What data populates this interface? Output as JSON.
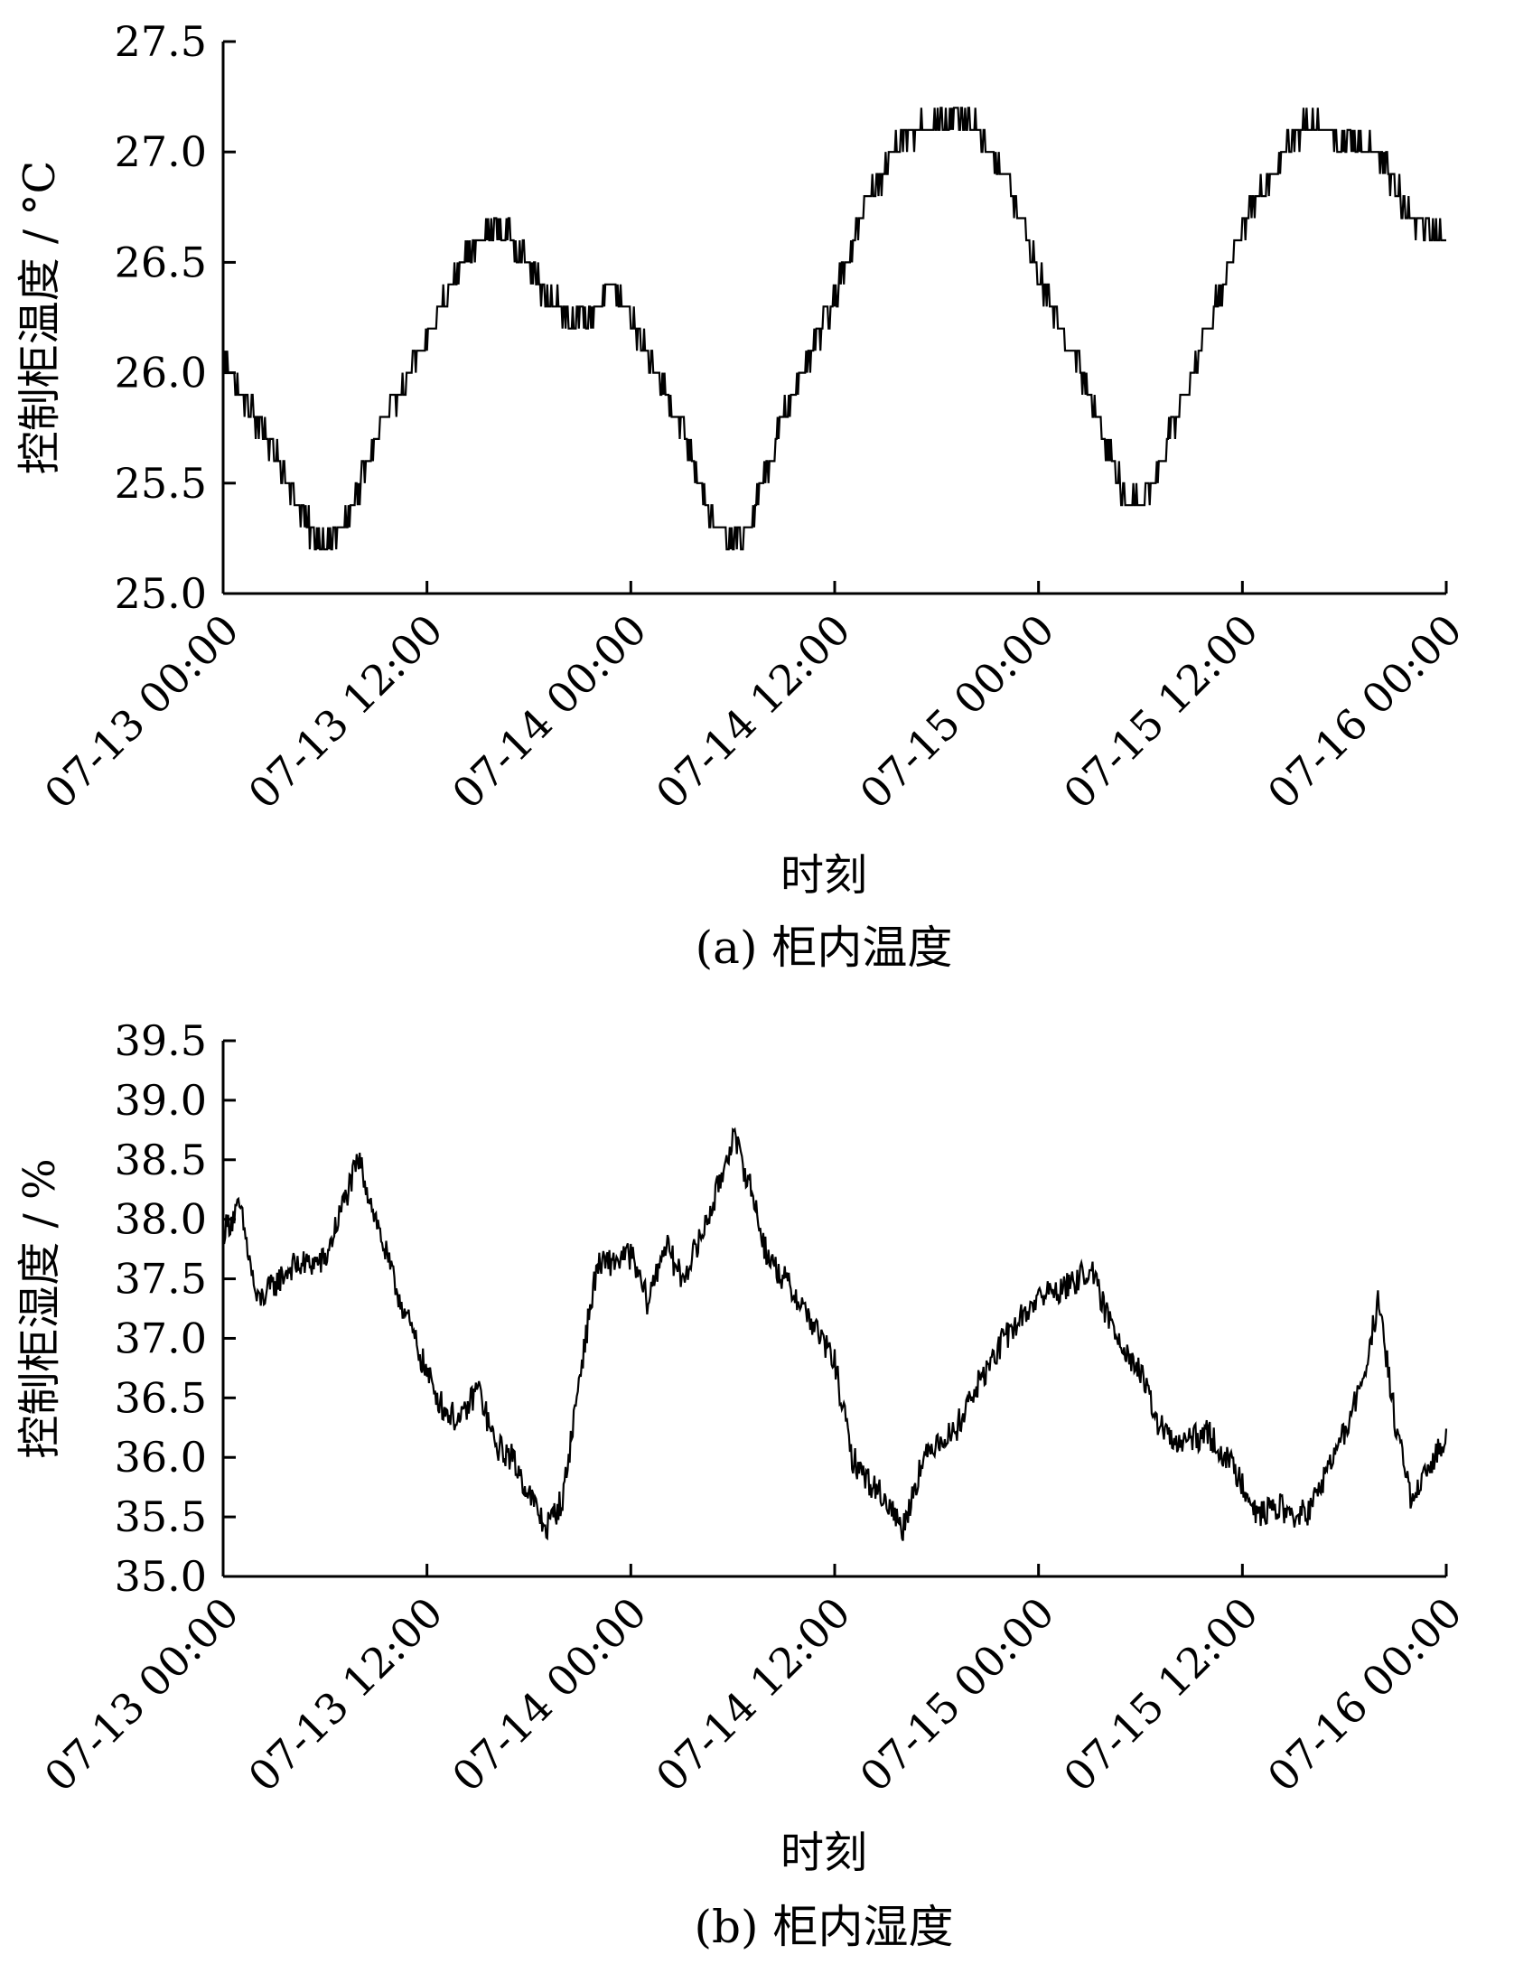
{
  "chart_data": [
    {
      "type": "line",
      "caption": "(a)  柜内温度",
      "xlabel": "时刻",
      "ylabel": "控制柜温度 / °C",
      "x_ticks": [
        "07-13 00:00",
        "07-13 12:00",
        "07-14 00:00",
        "07-14 12:00",
        "07-15 00:00",
        "07-15 12:00",
        "07-16 00:00"
      ],
      "y_ticks": [
        "25.0",
        "25.5",
        "26.0",
        "26.5",
        "27.0",
        "27.5"
      ],
      "xlim": [
        "07-13 00:00",
        "07-16 00:00"
      ],
      "ylim": [
        25.0,
        27.5
      ],
      "grid": false,
      "color": "#000000",
      "series": [
        {
          "x": [
            "07-13 00:00",
            "07-13 03:00",
            "07-13 05:00",
            "07-13 06:00",
            "07-13 07:00",
            "07-13 09:00",
            "07-13 12:00",
            "07-13 14:00",
            "07-13 16:00",
            "07-13 17:00",
            "07-13 19:00",
            "07-13 21:00",
            "07-13 22:00",
            "07-13 23:00",
            "07-14 00:00",
            "07-14 03:00",
            "07-14 05:00",
            "07-14 06:00",
            "07-14 07:00",
            "07-14 09:00",
            "07-14 12:00",
            "07-14 14:00",
            "07-14 16:00",
            "07-14 18:00",
            "07-14 20:00",
            "07-14 22:00",
            "07-15 00:00",
            "07-15 03:00",
            "07-15 05:00",
            "07-15 06:00",
            "07-15 07:00",
            "07-15 09:00",
            "07-15 12:00",
            "07-15 14:00",
            "07-15 16:00",
            "07-15 18:00",
            "07-15 20:00",
            "07-15 22:00",
            "07-16 00:00"
          ],
          "y": [
            26.05,
            25.65,
            25.3,
            25.22,
            25.28,
            25.7,
            26.15,
            26.5,
            26.65,
            26.62,
            26.35,
            26.22,
            26.3,
            26.4,
            26.25,
            25.75,
            25.3,
            25.22,
            25.3,
            25.8,
            26.35,
            26.8,
            27.05,
            27.15,
            27.15,
            26.9,
            26.45,
            25.9,
            25.45,
            25.42,
            25.55,
            26.0,
            26.65,
            26.95,
            27.15,
            27.05,
            27.0,
            26.7,
            26.6
          ]
        }
      ]
    },
    {
      "type": "line",
      "caption": "(b)  柜内湿度",
      "xlabel": "时刻",
      "ylabel": "控制柜湿度 / %",
      "x_ticks": [
        "07-13 00:00",
        "07-13 12:00",
        "07-14 00:00",
        "07-14 12:00",
        "07-15 00:00",
        "07-15 12:00",
        "07-16 00:00"
      ],
      "y_ticks": [
        "35.0",
        "35.5",
        "36.0",
        "36.5",
        "37.0",
        "37.5",
        "38.0",
        "38.5",
        "39.0",
        "39.5"
      ],
      "xlim": [
        "07-13 00:00",
        "07-16 00:00"
      ],
      "ylim": [
        35.0,
        39.5
      ],
      "grid": false,
      "color": "#000000",
      "series": [
        {
          "x": [
            "07-13 00:00",
            "07-13 01:00",
            "07-13 02:00",
            "07-13 04:00",
            "07-13 06:00",
            "07-13 07:00",
            "07-13 08:00",
            "07-13 10:00",
            "07-13 12:00",
            "07-13 13:00",
            "07-13 14:00",
            "07-13 15:00",
            "07-13 16:00",
            "07-13 17:00",
            "07-13 18:00",
            "07-13 19:00",
            "07-13 20:00",
            "07-13 21:00",
            "07-13 22:00",
            "07-14 00:00",
            "07-14 01:00",
            "07-14 02:00",
            "07-14 03:00",
            "07-14 04:00",
            "07-14 05:00",
            "07-14 06:00",
            "07-14 07:00",
            "07-14 08:00",
            "07-14 10:00",
            "07-14 12:00",
            "07-14 13:00",
            "07-14 14:00",
            "07-14 15:00",
            "07-14 16:00",
            "07-14 17:00",
            "07-14 18:00",
            "07-14 19:00",
            "07-14 20:00",
            "07-14 22:00",
            "07-15 00:00",
            "07-15 02:00",
            "07-15 03:00",
            "07-15 04:00",
            "07-15 06:00",
            "07-15 07:00",
            "07-15 08:00",
            "07-15 10:00",
            "07-15 12:00",
            "07-15 13:00",
            "07-15 14:00",
            "07-15 15:00",
            "07-15 16:00",
            "07-15 17:00",
            "07-15 18:00",
            "07-15 19:00",
            "07-15 20:00",
            "07-15 21:00",
            "07-15 22:00",
            "07-15 23:00",
            "07-16 00:00"
          ],
          "y": [
            37.9,
            38.1,
            37.3,
            37.6,
            37.65,
            38.1,
            38.5,
            37.5,
            36.7,
            36.4,
            36.3,
            36.6,
            36.1,
            36.0,
            35.7,
            35.4,
            35.65,
            36.7,
            37.6,
            37.7,
            37.3,
            37.8,
            37.5,
            37.8,
            38.2,
            38.7,
            38.3,
            37.7,
            37.3,
            36.8,
            36.0,
            35.8,
            35.65,
            35.4,
            35.9,
            36.15,
            36.2,
            36.5,
            37.0,
            37.35,
            37.45,
            37.6,
            37.2,
            36.7,
            36.3,
            36.1,
            36.2,
            35.8,
            35.5,
            35.6,
            35.5,
            35.55,
            35.9,
            36.2,
            36.6,
            37.3,
            36.3,
            35.6,
            35.9,
            36.2
          ]
        }
      ]
    }
  ]
}
